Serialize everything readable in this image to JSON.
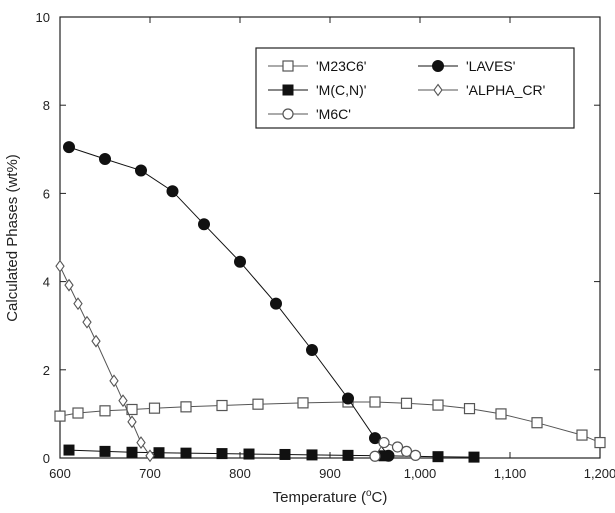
{
  "chart_data": {
    "type": "line",
    "xlabel": "Temperature (",
    "xlabel_unit_sup": "o",
    "xlabel_unit": "C)",
    "ylabel": "Calculated Phases (wt%)",
    "xlim": [
      600,
      1200
    ],
    "ylim": [
      0,
      10
    ],
    "xticks": [
      600,
      700,
      800,
      900,
      1000,
      1100,
      1200
    ],
    "xtick_labels": [
      "600",
      "700",
      "800",
      "900",
      "1,000",
      "1,100",
      "1,200"
    ],
    "yticks": [
      0,
      2,
      4,
      6,
      8,
      10
    ],
    "ytick_labels": [
      "0",
      "2",
      "4",
      "6",
      "8",
      "10"
    ],
    "grid": false,
    "legend_position": "top-right",
    "series": [
      {
        "name": "'M23C6'",
        "marker": "open-square",
        "color": "#555555",
        "x": [
          600,
          620,
          650,
          680,
          705,
          740,
          780,
          820,
          870,
          920,
          950,
          985,
          1020,
          1055,
          1090,
          1130,
          1180,
          1200
        ],
        "y": [
          0.95,
          1.02,
          1.07,
          1.1,
          1.13,
          1.16,
          1.19,
          1.22,
          1.25,
          1.27,
          1.27,
          1.24,
          1.2,
          1.12,
          1.0,
          0.8,
          0.52,
          0.35
        ]
      },
      {
        "name": "'LAVES'",
        "marker": "filled-circle",
        "color": "#111111",
        "x": [
          610,
          650,
          690,
          725,
          760,
          800,
          840,
          880,
          920,
          950,
          965
        ],
        "y": [
          7.05,
          6.78,
          6.52,
          6.05,
          5.3,
          4.45,
          3.5,
          2.45,
          1.35,
          0.45,
          0.05
        ]
      },
      {
        "name": "'M(C,N)'",
        "marker": "filled-square",
        "color": "#111111",
        "x": [
          610,
          650,
          680,
          710,
          740,
          780,
          810,
          850,
          880,
          920,
          960,
          1020,
          1060
        ],
        "y": [
          0.18,
          0.15,
          0.13,
          0.12,
          0.11,
          0.1,
          0.09,
          0.08,
          0.07,
          0.06,
          0.05,
          0.03,
          0.02
        ]
      },
      {
        "name": "'ALPHA_CR'",
        "marker": "open-diamond",
        "color": "#555555",
        "x": [
          600,
          610,
          620,
          630,
          640,
          660,
          670,
          680,
          690,
          700
        ],
        "y": [
          4.35,
          3.92,
          3.5,
          3.08,
          2.65,
          1.75,
          1.3,
          0.82,
          0.35,
          0.05
        ]
      },
      {
        "name": "'M6C'",
        "marker": "open-circle",
        "color": "#555555",
        "x": [
          950,
          960,
          975,
          985,
          995
        ],
        "y": [
          0.04,
          0.35,
          0.25,
          0.15,
          0.06
        ]
      }
    ],
    "legend_order": [
      "'M23C6'",
      "'LAVES'",
      "'M(C,N)'",
      "'ALPHA_CR'",
      "'M6C'"
    ]
  }
}
